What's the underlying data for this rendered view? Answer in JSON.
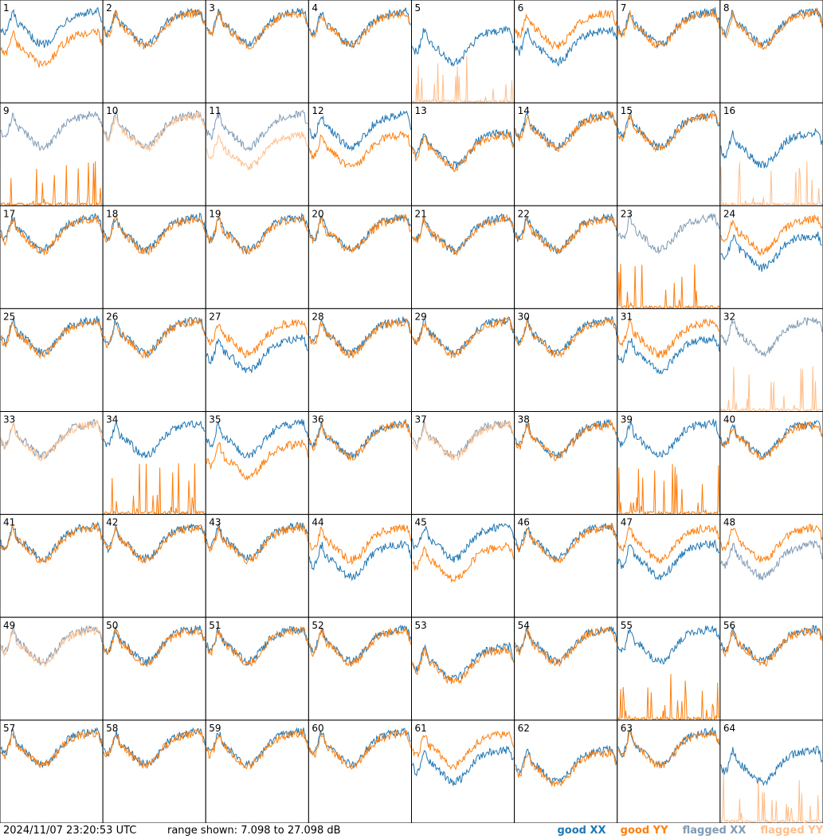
{
  "footer": {
    "timestamp": "2024/11/07 23:20:53 UTC",
    "range": "range shown: 7.098 to 27.098 dB"
  },
  "legend": [
    {
      "label": "good XX",
      "color": "#1f77b4"
    },
    {
      "label": "good YY",
      "color": "#ff7f0e"
    },
    {
      "label": "flagged XX",
      "color": "#7f9bb5"
    },
    {
      "label": "flagged YY",
      "color": "#ffbf8c"
    }
  ],
  "chart_data": {
    "type": "line",
    "layout": "8x8 small-multiple grid of per-antenna spectra",
    "units": "dB",
    "ylim": [
      7.098,
      27.098
    ],
    "series_names": [
      "XX",
      "YY"
    ],
    "panel_labels": [
      "1",
      "2",
      "3",
      "4",
      "5",
      "6",
      "7",
      "8",
      "9",
      "10",
      "11",
      "12",
      "13",
      "14",
      "15",
      "16",
      "17",
      "18",
      "19",
      "20",
      "21",
      "22",
      "23",
      "24",
      "25",
      "26",
      "27",
      "28",
      "29",
      "30",
      "31",
      "32",
      "33",
      "34",
      "35",
      "36",
      "37",
      "38",
      "39",
      "40",
      "41",
      "42",
      "43",
      "44",
      "45",
      "46",
      "47",
      "48",
      "49",
      "50",
      "51",
      "52",
      "53",
      "54",
      "55",
      "56",
      "57",
      "58",
      "59",
      "60",
      "61",
      "62",
      "63",
      "64"
    ],
    "flagged_xx": [
      9,
      10,
      11,
      23,
      32,
      33,
      37,
      48,
      49
    ],
    "flagged_yy": [
      5,
      10,
      11,
      16,
      32,
      33,
      37,
      49,
      64
    ],
    "shape_notes": {
      "typical": "noisy passband with dip near the middle, values roughly 17-24 dB",
      "low_xx": [
        5,
        6,
        13,
        16,
        24,
        27,
        31,
        44,
        47,
        48,
        53,
        61,
        62,
        64
      ],
      "low_yy": [
        1,
        11,
        12,
        13,
        35,
        45,
        53,
        62
      ],
      "spiky_near_floor": [
        5,
        9,
        16,
        23,
        32,
        34,
        39,
        55,
        64
      ]
    }
  }
}
